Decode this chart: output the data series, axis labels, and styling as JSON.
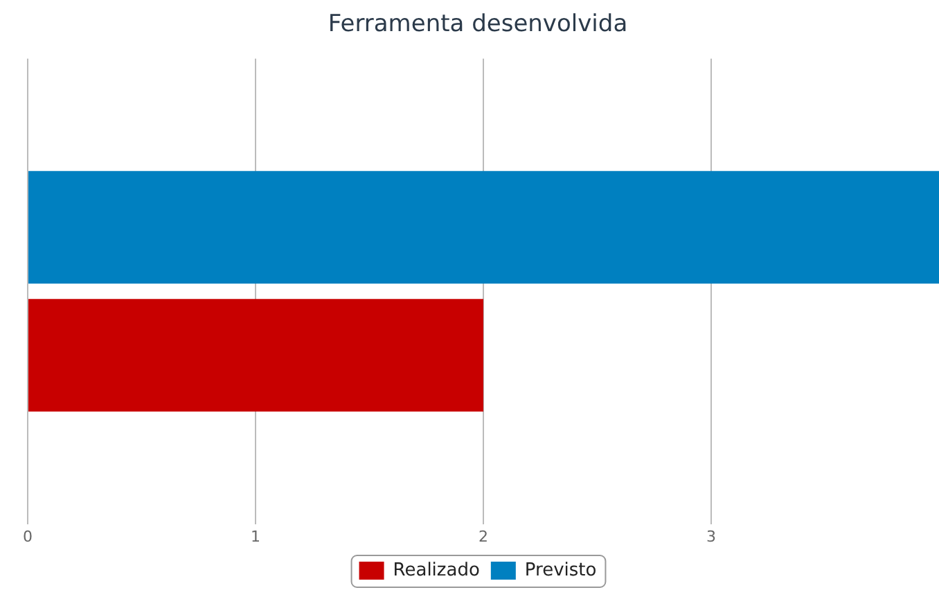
{
  "chart_data": {
    "type": "bar",
    "title": "Ferramenta desenvolvida",
    "orientation": "horizontal",
    "categories": [
      null
    ],
    "series": [
      {
        "name": "Previsto",
        "color": "#0080c0",
        "values": [
          4
        ]
      },
      {
        "name": "Realizado",
        "color": "#c80000",
        "values": [
          2
        ]
      }
    ],
    "xlim": [
      0,
      4
    ],
    "xticks": [
      0,
      1,
      2,
      3
    ],
    "grid": "x",
    "legend": "bottom",
    "tick_labels": "x"
  }
}
